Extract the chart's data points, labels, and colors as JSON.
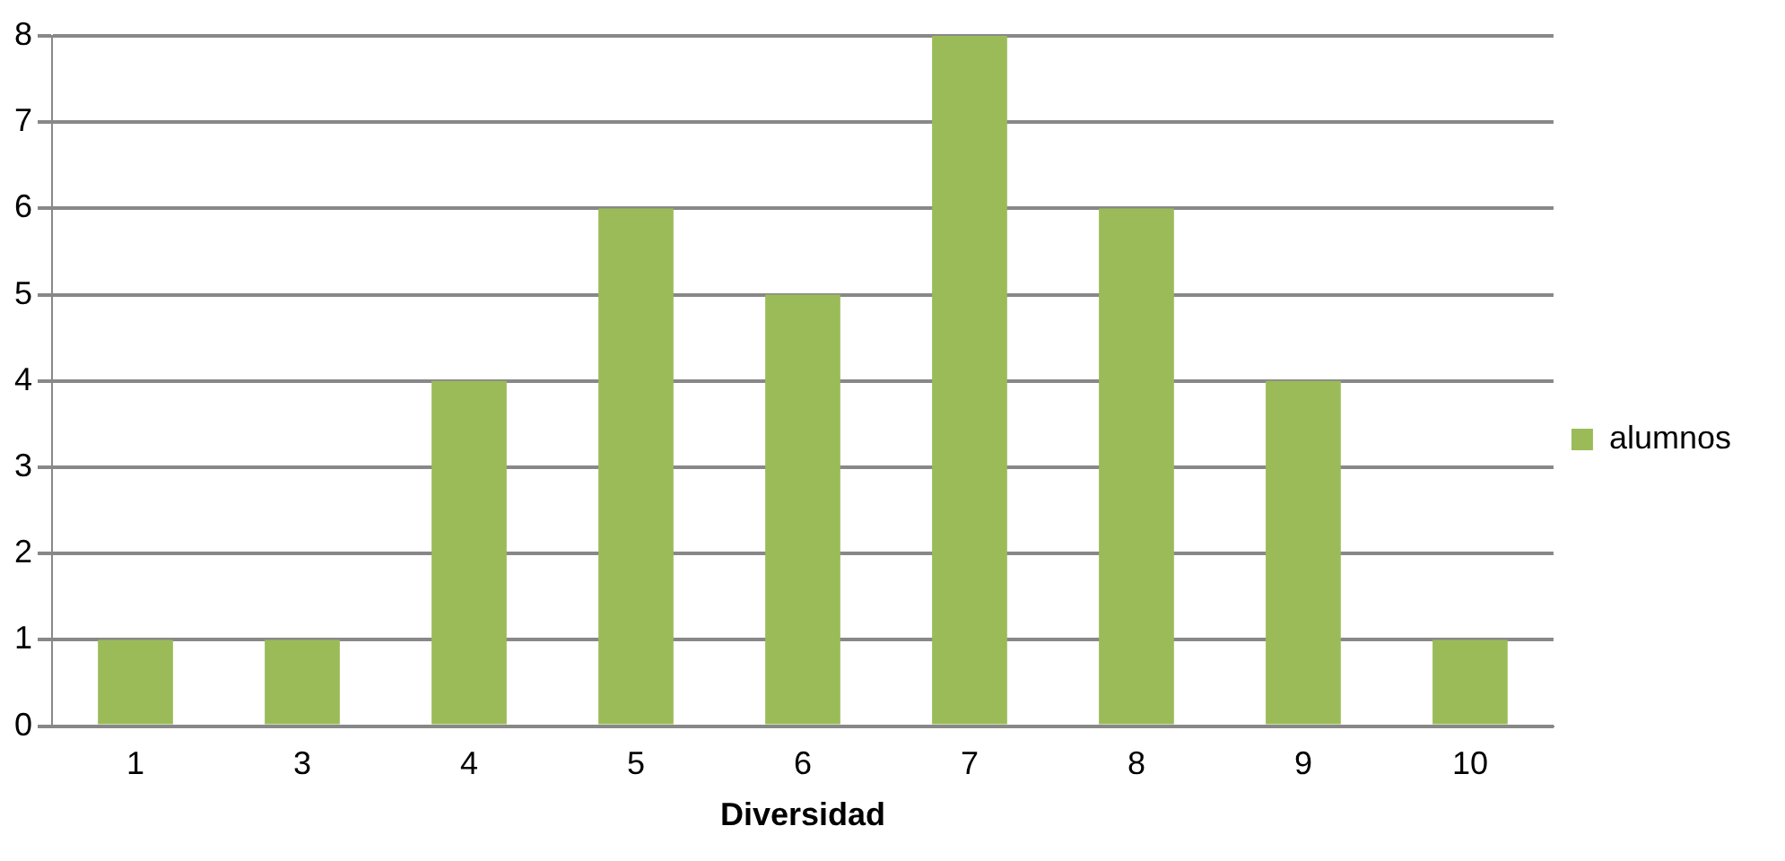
{
  "chart_data": {
    "type": "bar",
    "xlabel": "Diversidad",
    "categories": [
      "1",
      "3",
      "4",
      "5",
      "6",
      "7",
      "8",
      "9",
      "10"
    ],
    "series": [
      {
        "name": "alumnos",
        "color": "#9bbb59",
        "values": [
          1,
          1,
          4,
          6,
          5,
          8,
          6,
          4,
          1
        ]
      }
    ],
    "ylim": [
      0,
      8
    ],
    "yticks": [
      0,
      1,
      2,
      3,
      4,
      5,
      6,
      7,
      8
    ],
    "grid": "y",
    "legend": "right"
  }
}
